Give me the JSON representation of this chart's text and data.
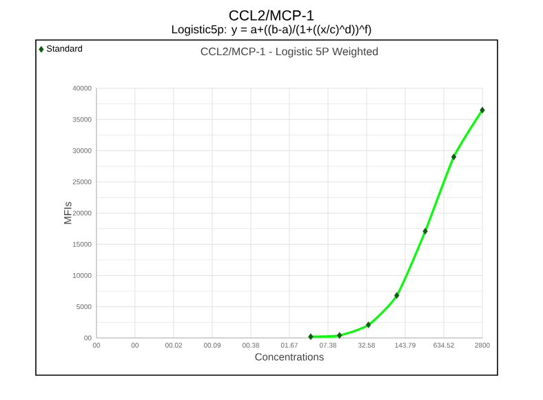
{
  "chart_data": {
    "type": "scatter",
    "title": "CCL2/MCP-1",
    "subtitle": "Logistic5p: y = a+((b-a)/(1+((x/c)^d))^f)",
    "annotations": [
      "CCL2/MCP-1 - Logistic 5P Weighted"
    ],
    "xlabel": "Concentrations",
    "ylabel": "MFIs",
    "log": "x",
    "series": [
      {
        "type": "line",
        "color": "#00ff00",
        "x": [
          3.8,
          11.5,
          35,
          104,
          311,
          933,
          2800
        ],
        "values": [
          200,
          400,
          2100,
          6800,
          17100,
          29000,
          36500
        ]
      },
      {
        "name": "Standard",
        "color": "#006400",
        "marker": "diamond",
        "x": [
          3.8,
          11.5,
          35,
          104,
          311,
          933,
          2800
        ],
        "values": [
          200,
          400,
          2100,
          6800,
          17100,
          29000,
          36500
        ]
      }
    ],
    "xlim": [
      0.001,
      2800
    ],
    "xticks": [
      {
        "value": 0.001,
        "label": "00"
      },
      {
        "value": 0.0044,
        "label": "00"
      },
      {
        "value": 0.0195,
        "label": "00.02"
      },
      {
        "value": 0.086,
        "label": "00.09"
      },
      {
        "value": 0.38,
        "label": "00.38"
      },
      {
        "value": 1.67,
        "label": "01.67"
      },
      {
        "value": 7.38,
        "label": "07.38"
      },
      32.58,
      143.79,
      634.52,
      2800
    ],
    "ylim": [
      0,
      40000
    ],
    "yticks": [
      {
        "value": 0,
        "label": "00"
      },
      5000,
      10000,
      15000,
      20000,
      25000,
      30000,
      35000,
      40000
    ],
    "grid": true,
    "legend": "top left"
  }
}
